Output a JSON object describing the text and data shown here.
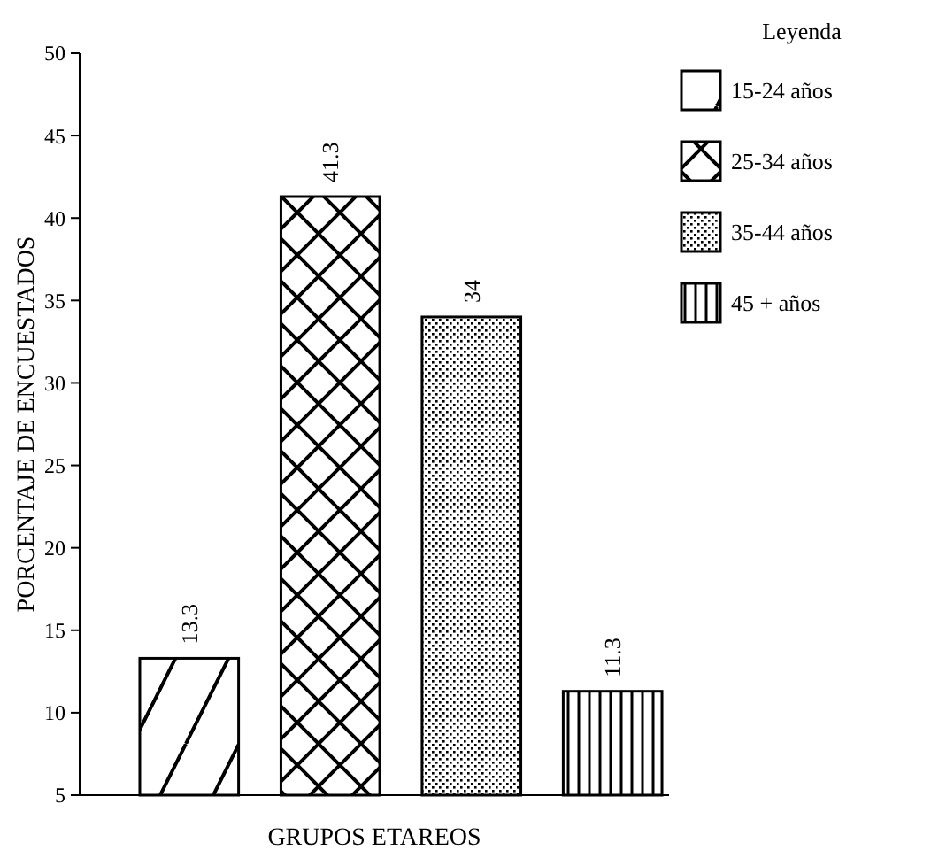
{
  "chart_data": {
    "type": "bar",
    "xlabel": "GRUPOS ETAREOS",
    "ylabel": "PORCENTAJE DE ENCUESTADOS",
    "legend_title": "Leyenda",
    "legend": "right",
    "data_labels": true,
    "grid": false,
    "categories": [
      null,
      null,
      null,
      null
    ],
    "ylim": [
      5,
      50
    ],
    "yticks": [
      5,
      10,
      15,
      20,
      25,
      30,
      35,
      40,
      45,
      50
    ],
    "series": [
      {
        "name": "15-24 años",
        "color": "#000000",
        "values": [
          13.3,
          null,
          null,
          null
        ]
      },
      {
        "name": "25-34 años",
        "color": "#000000",
        "values": [
          null,
          41.3,
          null,
          null
        ]
      },
      {
        "name": "35-44 años",
        "color": "#000000",
        "values": [
          null,
          null,
          34,
          null
        ]
      },
      {
        "name": "45 +  años",
        "color": "#000000",
        "values": [
          null,
          null,
          null,
          11.3
        ]
      }
    ]
  }
}
